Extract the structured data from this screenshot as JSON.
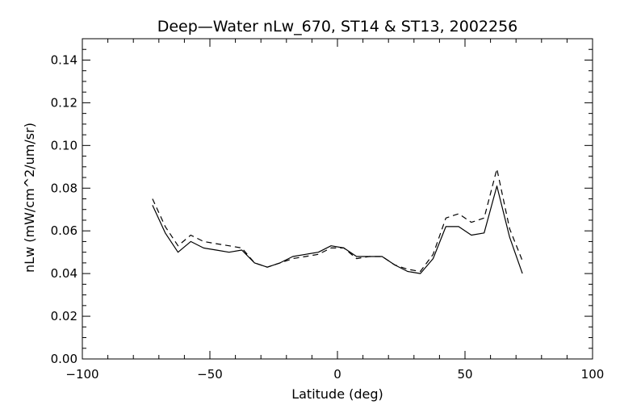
{
  "chart_data": {
    "type": "line",
    "title": "Deep—Water nLw_670, ST14 & ST13, 2002256",
    "xlabel": "Latitude (deg)",
    "ylabel": "nLw (mW/cm^2/um/sr)",
    "xlim": [
      -100,
      100
    ],
    "ylim": [
      0.0,
      0.15
    ],
    "x_ticks": [
      -100,
      -50,
      0,
      50,
      100
    ],
    "x_tick_labels": [
      "−100",
      "−50",
      "0",
      "50",
      "100"
    ],
    "y_ticks": [
      0.0,
      0.02,
      0.04,
      0.06,
      0.08,
      0.1,
      0.12,
      0.14
    ],
    "y_tick_labels": [
      "0.00",
      "0.02",
      "0.04",
      "0.06",
      "0.08",
      "0.10",
      "0.12",
      "0.14"
    ],
    "grid": false,
    "colors": {
      "line": "#000000",
      "background": "#ffffff"
    },
    "series": [
      {
        "style": "solid",
        "x": [
          -72.5,
          -67.5,
          -62.5,
          -57.5,
          -52.5,
          -47.5,
          -42.5,
          -37.5,
          -32.5,
          -27.5,
          -22.5,
          -17.5,
          -12.5,
          -7.5,
          -2.5,
          2.5,
          7.5,
          12.5,
          17.5,
          22.5,
          27.5,
          32.5,
          37.5,
          42.5,
          47.5,
          52.5,
          57.5,
          62.5,
          67.5,
          72.5
        ],
        "y": [
          0.072,
          0.059,
          0.05,
          0.055,
          0.052,
          0.051,
          0.05,
          0.051,
          0.045,
          0.043,
          0.045,
          0.048,
          0.049,
          0.05,
          0.053,
          0.052,
          0.048,
          0.048,
          0.048,
          0.044,
          0.041,
          0.04,
          0.047,
          0.062,
          0.062,
          0.058,
          0.059,
          0.081,
          0.057,
          0.04
        ]
      },
      {
        "style": "dashed",
        "x": [
          -72.5,
          -67.5,
          -62.5,
          -57.5,
          -52.5,
          -47.5,
          -42.5,
          -37.5,
          -32.5,
          -27.5,
          -22.5,
          -17.5,
          -12.5,
          -7.5,
          -2.5,
          2.5,
          7.5,
          12.5,
          17.5,
          22.5,
          27.5,
          32.5,
          37.5,
          42.5,
          47.5,
          52.5,
          57.5,
          62.5,
          67.5,
          72.5
        ],
        "y": [
          0.075,
          0.062,
          0.053,
          0.058,
          0.055,
          0.054,
          0.053,
          0.052,
          0.045,
          0.043,
          0.045,
          0.047,
          0.048,
          0.049,
          0.052,
          0.052,
          0.047,
          0.048,
          0.048,
          0.044,
          0.042,
          0.041,
          0.049,
          0.066,
          0.068,
          0.064,
          0.066,
          0.089,
          0.061,
          0.046
        ]
      }
    ]
  }
}
